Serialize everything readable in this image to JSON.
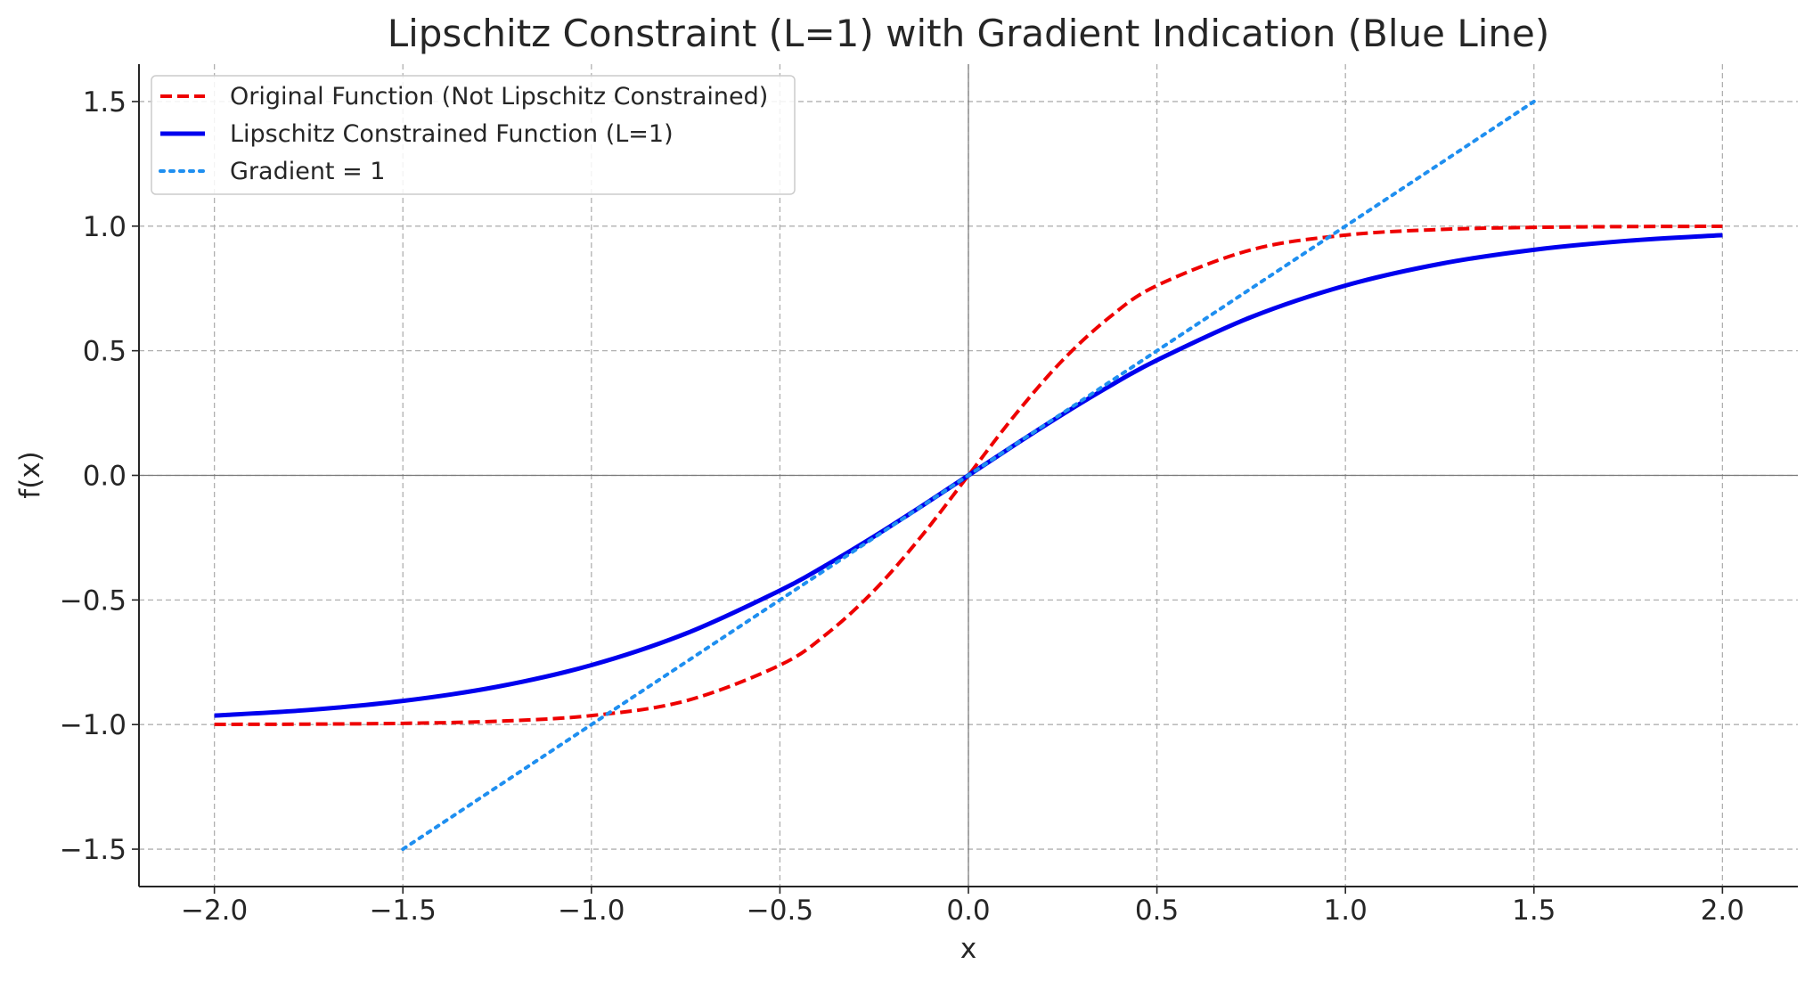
{
  "chart_data": {
    "type": "line",
    "title": "Lipschitz Constraint (L=1) with Gradient Indication (Blue Line)",
    "xlabel": "x",
    "ylabel": "f(x)",
    "xlim": [
      -2.2,
      2.2
    ],
    "ylim": [
      -1.65,
      1.65
    ],
    "x_ticks": [
      -2.0,
      -1.5,
      -1.0,
      -0.5,
      0.0,
      0.5,
      1.0,
      1.5,
      2.0
    ],
    "x_tick_labels": [
      "−2.0",
      "−1.5",
      "−1.0",
      "−0.5",
      "0.0",
      "0.5",
      "1.0",
      "1.5",
      "2.0"
    ],
    "y_ticks": [
      -1.5,
      -1.0,
      -0.5,
      0.0,
      0.5,
      1.0,
      1.5
    ],
    "y_tick_labels": [
      "−1.5",
      "−1.0",
      "−0.5",
      "0.0",
      "0.5",
      "1.0",
      "1.5"
    ],
    "grid": true,
    "zero_lines": true,
    "legend_position": "top-left",
    "series": [
      {
        "name": "Original Function (Not Lipschitz Constrained)",
        "color": "#ee0000",
        "style": "dashed",
        "x": [
          -2.0,
          -1.75,
          -1.5,
          -1.25,
          -1.0,
          -0.75,
          -0.5,
          -0.375,
          -0.25,
          -0.125,
          0.0,
          0.125,
          0.25,
          0.375,
          0.5,
          0.75,
          1.0,
          1.25,
          1.5,
          1.75,
          2.0
        ],
        "y": [
          -0.9993,
          -0.9982,
          -0.9951,
          -0.9866,
          -0.964,
          -0.905,
          -0.7616,
          -0.6351,
          -0.4621,
          -0.2449,
          0.0,
          0.2449,
          0.4621,
          0.6351,
          0.7616,
          0.905,
          0.964,
          0.9866,
          0.9951,
          0.9982,
          0.9993
        ]
      },
      {
        "name": "Lipschitz Constrained Function (L=1)",
        "color": "#0000ee",
        "style": "solid",
        "x": [
          -2.0,
          -1.75,
          -1.5,
          -1.25,
          -1.0,
          -0.75,
          -0.5,
          -0.375,
          -0.25,
          -0.125,
          0.0,
          0.125,
          0.25,
          0.375,
          0.5,
          0.75,
          1.0,
          1.25,
          1.5,
          1.75,
          2.0
        ],
        "y": [
          -0.964,
          -0.9414,
          -0.9051,
          -0.8483,
          -0.7616,
          -0.6351,
          -0.4621,
          -0.3584,
          -0.2449,
          -0.1244,
          0.0,
          0.1244,
          0.2449,
          0.3584,
          0.4621,
          0.6351,
          0.7616,
          0.8483,
          0.9051,
          0.9414,
          0.964
        ]
      },
      {
        "name": "Gradient = 1",
        "color": "#1f8ff0",
        "style": "dotted",
        "x": [
          -1.5,
          1.5
        ],
        "y": [
          -1.5,
          1.5
        ]
      }
    ]
  }
}
